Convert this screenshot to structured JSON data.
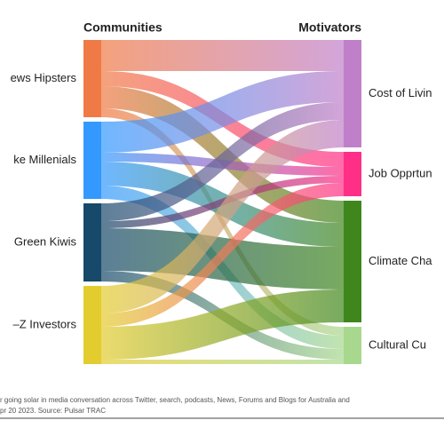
{
  "chart_data": {
    "type": "sankey",
    "left_header": "Communities",
    "right_header": "Motivators",
    "sources": [
      {
        "name": "ews Hipsters",
        "color": "#f07a45"
      },
      {
        "name": "ke Millenials",
        "color": "#3399ff"
      },
      {
        "name": "Green Kiwis",
        "color": "#17496a"
      },
      {
        "name": "–Z Investors",
        "color": "#e3cc2e"
      }
    ],
    "targets": [
      {
        "name": "Cost of Livin",
        "color": "#c07fc9"
      },
      {
        "name": "Job Opprtun",
        "color": "#ff2e86"
      },
      {
        "name": "Climate Cha",
        "color": "#3f861c"
      },
      {
        "name": "Cultural Cu",
        "color": "#a8d88e"
      }
    ],
    "links": [
      {
        "source": 0,
        "target": 0,
        "value": 35
      },
      {
        "source": 0,
        "target": 1,
        "value": 17
      },
      {
        "source": 0,
        "target": 2,
        "value": 25
      },
      {
        "source": 0,
        "target": 3,
        "value": 10
      },
      {
        "source": 1,
        "target": 0,
        "value": 35
      },
      {
        "source": 1,
        "target": 1,
        "value": 10
      },
      {
        "source": 1,
        "target": 2,
        "value": 27
      },
      {
        "source": 1,
        "target": 3,
        "value": 15
      },
      {
        "source": 2,
        "target": 0,
        "value": 20
      },
      {
        "source": 2,
        "target": 1,
        "value": 8
      },
      {
        "source": 2,
        "target": 2,
        "value": 48
      },
      {
        "source": 2,
        "target": 3,
        "value": 12
      },
      {
        "source": 3,
        "target": 0,
        "value": 31
      },
      {
        "source": 3,
        "target": 1,
        "value": 15
      },
      {
        "source": 3,
        "target": 2,
        "value": 37
      },
      {
        "source": 3,
        "target": 3,
        "value": 5
      }
    ],
    "footnote": [
      "r going solar in media conversation across Twitter, search, podcasts, News, Forums and Blogs for Australia and",
      "pr 20 2023. Source: Pulsar TRAC"
    ]
  }
}
